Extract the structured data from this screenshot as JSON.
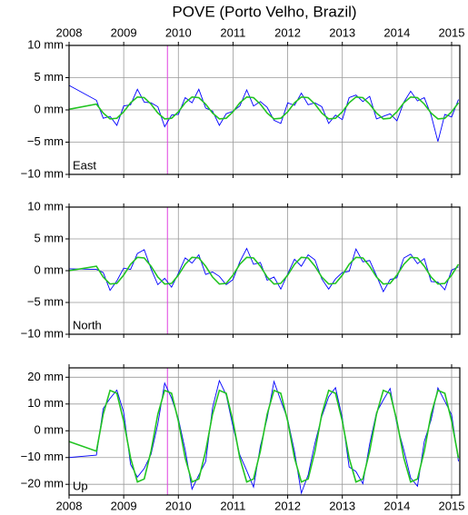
{
  "chart_data": [
    {
      "type": "line",
      "title": "POVE (Porto Velho, Brazil)",
      "panel_label": "East",
      "xtick_labels": "top",
      "xlim": [
        2008,
        2015.15
      ],
      "xticks": [
        2008,
        2009,
        2010,
        2011,
        2012,
        2013,
        2014,
        2015
      ],
      "ylim": [
        -10,
        10
      ],
      "yticks": [
        {
          "value": -10,
          "label": "−10 mm"
        },
        {
          "value": -5,
          "label": "−5 mm"
        },
        {
          "value": 0,
          "label": "0 mm"
        },
        {
          "value": 5,
          "label": "5 mm"
        },
        {
          "value": 10,
          "label": "10 mm"
        }
      ],
      "grid": true,
      "event_x": 2009.8,
      "event_color": "#e040e0",
      "x": [
        2008,
        2008.5,
        2008.625,
        2008.75,
        2008.875,
        2009,
        2009.125,
        2009.25,
        2009.375,
        2009.5,
        2009.625,
        2009.75,
        2009.875,
        2010,
        2010.125,
        2010.25,
        2010.375,
        2010.5,
        2010.625,
        2010.75,
        2010.875,
        2011,
        2011.125,
        2011.25,
        2011.375,
        2011.5,
        2011.625,
        2011.75,
        2011.875,
        2012,
        2012.125,
        2012.25,
        2012.375,
        2012.5,
        2012.625,
        2012.75,
        2012.875,
        2013,
        2013.125,
        2013.25,
        2013.375,
        2013.5,
        2013.625,
        2013.75,
        2013.875,
        2014,
        2014.125,
        2014.25,
        2014.375,
        2014.5,
        2014.625,
        2014.75,
        2014.875,
        2015,
        2015.125
      ],
      "series": [
        {
          "color": "#0000ff",
          "values": [
            3.8,
            1.5,
            -1.3,
            -1.0,
            -2.4,
            0.6,
            0.8,
            3.2,
            1.2,
            1.1,
            0.5,
            -2.6,
            -0.8,
            -0.7,
            1.9,
            1.1,
            3.2,
            0.3,
            -0.2,
            -2.4,
            -0.6,
            -0.2,
            0.6,
            3.1,
            0.6,
            1.3,
            0.4,
            -1.6,
            -2.1,
            1.1,
            0.7,
            2.6,
            0.8,
            1.1,
            0.5,
            -2.1,
            -0.8,
            -1.5,
            1.9,
            2.3,
            1.3,
            2.1,
            -1.4,
            -1.0,
            -0.6,
            -1.7,
            1.2,
            2.9,
            1.4,
            1.9,
            -0.8,
            -4.9,
            -0.7,
            -1.1,
            1.6
          ]
        },
        {
          "color": "#22c422",
          "values": [
            0.1,
            0.9,
            -0.5,
            -1.4,
            -1.3,
            -0.3,
            1.1,
            2.0,
            1.9,
            0.9,
            -0.5,
            -1.4,
            -1.3,
            -0.3,
            1.1,
            2.0,
            1.9,
            0.9,
            -0.5,
            -1.4,
            -1.3,
            -0.3,
            1.1,
            2.0,
            1.9,
            0.9,
            -0.5,
            -1.4,
            -1.3,
            -0.3,
            1.1,
            2.0,
            1.9,
            0.9,
            -0.5,
            -1.4,
            -1.3,
            -0.3,
            1.1,
            2.0,
            1.9,
            0.9,
            -0.5,
            -1.4,
            -1.3,
            -0.3,
            1.1,
            2.0,
            1.9,
            0.9,
            -0.5,
            -1.4,
            -1.3,
            -0.3,
            1.1
          ]
        }
      ]
    },
    {
      "type": "line",
      "panel_label": "North",
      "xtick_labels": "none",
      "xlim": [
        2008,
        2015.15
      ],
      "xticks": [
        2008,
        2009,
        2010,
        2011,
        2012,
        2013,
        2014,
        2015
      ],
      "ylim": [
        -10,
        10
      ],
      "yticks": [
        {
          "value": -10,
          "label": "−10 mm"
        },
        {
          "value": -5,
          "label": "−5 mm"
        },
        {
          "value": 0,
          "label": "0 mm"
        },
        {
          "value": 5,
          "label": "5 mm"
        },
        {
          "value": 10,
          "label": "10 mm"
        }
      ],
      "grid": true,
      "event_x": 2009.8,
      "event_color": "#e040e0",
      "x": [
        2008,
        2008.5,
        2008.625,
        2008.75,
        2008.875,
        2009,
        2009.125,
        2009.25,
        2009.375,
        2009.5,
        2009.625,
        2009.75,
        2009.875,
        2010,
        2010.125,
        2010.25,
        2010.375,
        2010.5,
        2010.625,
        2010.75,
        2010.875,
        2011,
        2011.125,
        2011.25,
        2011.375,
        2011.5,
        2011.625,
        2011.75,
        2011.875,
        2012,
        2012.125,
        2012.25,
        2012.375,
        2012.5,
        2012.625,
        2012.75,
        2012.875,
        2013,
        2013.125,
        2013.25,
        2013.375,
        2013.5,
        2013.625,
        2013.75,
        2013.875,
        2014,
        2014.125,
        2014.25,
        2014.375,
        2014.5,
        2014.625,
        2014.75,
        2014.875,
        2015,
        2015.125
      ],
      "series": [
        {
          "color": "#0000ff",
          "values": [
            0.3,
            0.2,
            -0.3,
            -3.1,
            -1.6,
            0.4,
            0.2,
            2.7,
            3.3,
            0.3,
            -2.2,
            -1.2,
            -2.6,
            -0.4,
            2.0,
            1.2,
            2.5,
            -0.6,
            -0.2,
            -0.9,
            -2.2,
            -1.4,
            1.4,
            3.5,
            1.0,
            1.3,
            -1.5,
            -1.0,
            -2.9,
            -0.5,
            1.8,
            0.7,
            2.5,
            1.7,
            -1.3,
            -2.9,
            -1.3,
            -0.3,
            -0.1,
            3.4,
            1.4,
            1.6,
            -0.8,
            -3.3,
            -1.4,
            -1.1,
            2.0,
            2.6,
            1.1,
            1.9,
            -1.7,
            -1.8,
            -3.0,
            0.1,
            0.6
          ]
        },
        {
          "color": "#22c422",
          "values": [
            0.0,
            0.7,
            -1.0,
            -2.1,
            -2.0,
            -0.7,
            1.0,
            2.1,
            2.0,
            0.7,
            -1.0,
            -2.1,
            -2.0,
            -0.7,
            1.0,
            2.1,
            2.0,
            0.7,
            -1.0,
            -2.1,
            -2.0,
            -0.7,
            1.0,
            2.1,
            2.0,
            0.7,
            -1.0,
            -2.1,
            -2.0,
            -0.7,
            1.0,
            2.1,
            2.0,
            0.7,
            -1.0,
            -2.1,
            -2.0,
            -0.7,
            1.0,
            2.1,
            2.0,
            0.7,
            -1.0,
            -2.1,
            -2.0,
            -0.7,
            1.0,
            2.1,
            2.0,
            0.7,
            -1.0,
            -2.1,
            -2.0,
            -0.7,
            1.0
          ]
        }
      ]
    },
    {
      "type": "line",
      "panel_label": "Up",
      "xtick_labels": "bottom",
      "xlim": [
        2008,
        2015.15
      ],
      "xticks": [
        2008,
        2009,
        2010,
        2011,
        2012,
        2013,
        2014,
        2015
      ],
      "ylim": [
        -24,
        23.5
      ],
      "yticks": [
        {
          "value": -20,
          "label": "−20 mm"
        },
        {
          "value": -10,
          "label": "−10 mm"
        },
        {
          "value": 0,
          "label": "0 mm"
        },
        {
          "value": 10,
          "label": "10 mm"
        },
        {
          "value": 20,
          "label": "20 mm"
        }
      ],
      "grid": true,
      "event_x": 2009.8,
      "event_color": "#e040e0",
      "x": [
        2008,
        2008.5,
        2008.625,
        2008.75,
        2008.875,
        2009,
        2009.125,
        2009.25,
        2009.375,
        2009.5,
        2009.625,
        2009.75,
        2009.875,
        2010,
        2010.125,
        2010.25,
        2010.375,
        2010.5,
        2010.625,
        2010.75,
        2010.875,
        2011,
        2011.125,
        2011.25,
        2011.375,
        2011.5,
        2011.625,
        2011.75,
        2011.875,
        2012,
        2012.125,
        2012.25,
        2012.375,
        2012.5,
        2012.625,
        2012.75,
        2012.875,
        2013,
        2013.125,
        2013.25,
        2013.375,
        2013.5,
        2013.625,
        2013.75,
        2013.875,
        2014,
        2014.125,
        2014.25,
        2014.375,
        2014.5,
        2014.625,
        2014.75,
        2014.875,
        2015,
        2015.125
      ],
      "series": [
        {
          "color": "#0000ff",
          "values": [
            -10.0,
            -9.1,
            8.3,
            12.1,
            15.2,
            6.9,
            -12.6,
            -17.3,
            -14.1,
            -8.8,
            2.6,
            17.8,
            12.2,
            4.5,
            -7.2,
            -21.8,
            -16.5,
            -11.5,
            8.6,
            18.7,
            13.4,
            1.5,
            -9.0,
            -14.9,
            -21.0,
            -5.8,
            4.7,
            18.4,
            11.3,
            4.2,
            -7.8,
            -23.3,
            -16.5,
            -4.6,
            5.3,
            12.7,
            16.1,
            4.8,
            -13.5,
            -15.2,
            -19.8,
            -4.9,
            6.8,
            11.5,
            15.8,
            2.4,
            -7.2,
            -17.6,
            -20.7,
            -4.0,
            4.1,
            16.0,
            11.0,
            6.0,
            -11.4
          ]
        },
        {
          "color": "#22c422",
          "values": [
            -4.0,
            -7.6,
            6.2,
            15.1,
            14.0,
            3.6,
            -10.2,
            -19.1,
            -18.0,
            -7.6,
            6.2,
            15.1,
            14.0,
            3.6,
            -10.2,
            -19.1,
            -18.0,
            -7.6,
            6.2,
            15.1,
            14.0,
            3.6,
            -10.2,
            -19.1,
            -18.0,
            -7.6,
            6.2,
            15.1,
            14.0,
            3.6,
            -10.2,
            -19.1,
            -18.0,
            -7.6,
            6.2,
            15.1,
            14.0,
            3.6,
            -10.2,
            -19.1,
            -18.0,
            -7.6,
            6.2,
            15.1,
            14.0,
            3.6,
            -10.2,
            -19.1,
            -18.0,
            -7.6,
            6.2,
            15.1,
            14.0,
            3.6,
            -10.2
          ]
        }
      ]
    }
  ]
}
